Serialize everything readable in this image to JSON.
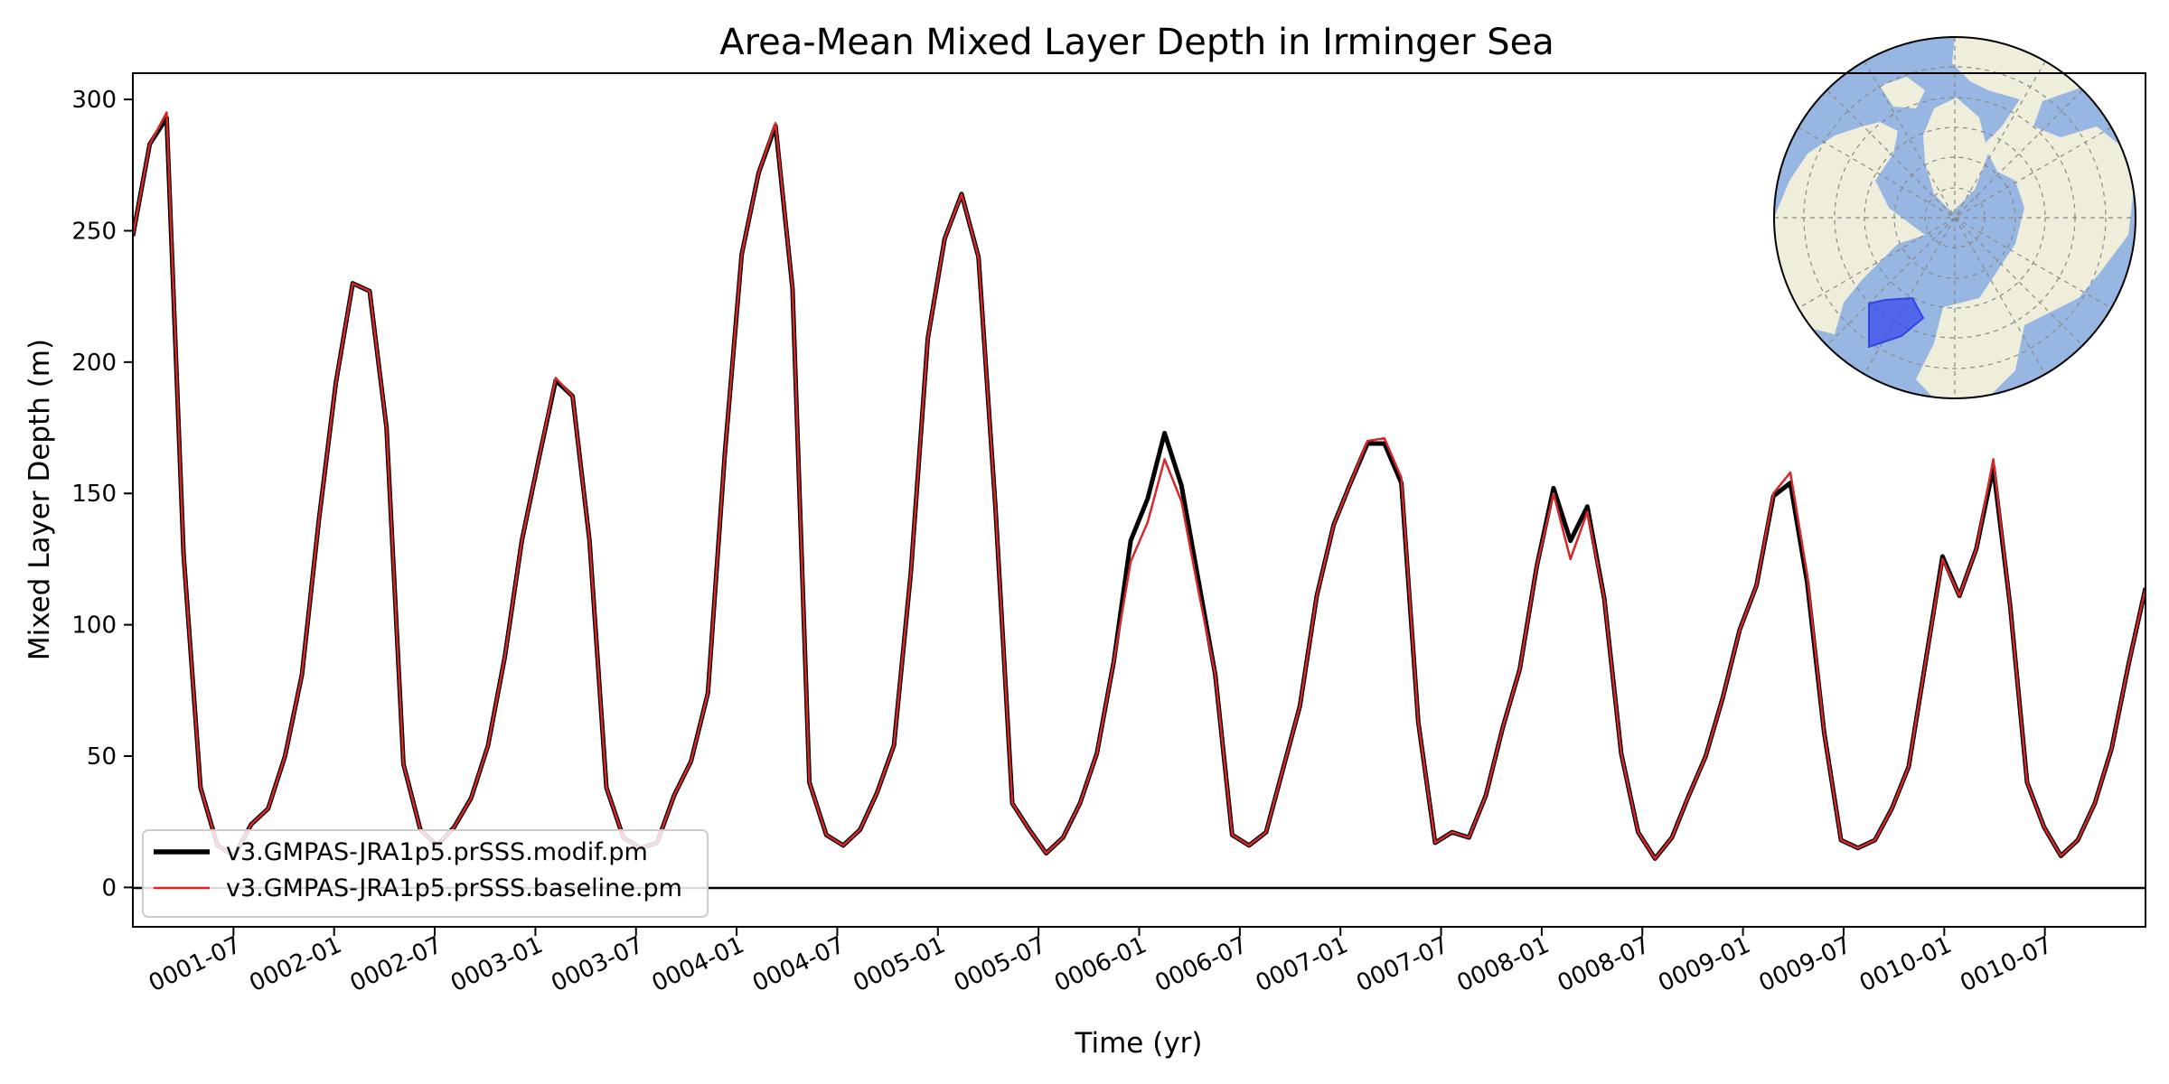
{
  "chart_data": {
    "type": "line",
    "title": "Area-Mean Mixed Layer Depth in Irminger Sea",
    "xlabel": "Time (yr)",
    "ylabel": "Mixed Layer Depth (m)",
    "xlim": [
      0.0,
      10.0
    ],
    "ylim": [
      -15,
      310
    ],
    "yticks": [
      0,
      50,
      100,
      150,
      200,
      250,
      300
    ],
    "xtick_labels": [
      "0001-07",
      "0002-01",
      "0002-07",
      "0003-01",
      "0003-07",
      "0004-01",
      "0004-07",
      "0005-01",
      "0005-07",
      "0006-01",
      "0006-07",
      "0007-01",
      "0007-07",
      "0008-01",
      "0008-07",
      "0009-01",
      "0009-07",
      "0010-01",
      "0010-07"
    ],
    "zero_line": true,
    "grid": false,
    "legend_position": "lower-left",
    "inset": "north-polar-map-irminger-sea-region",
    "series": [
      {
        "name": "v3.GMPAS-JRA1p5.prSSS.modif.pm",
        "color": "#000000",
        "values": [
          248,
          283,
          293,
          127,
          38,
          16,
          12,
          24,
          30,
          50,
          81,
          140,
          192,
          230,
          227,
          175,
          47,
          22,
          16,
          23,
          34,
          54,
          88,
          132,
          163,
          193,
          187,
          132,
          38,
          19,
          15,
          17,
          35,
          48,
          74,
          165,
          241,
          272,
          290,
          228,
          40,
          20,
          16,
          22,
          36,
          54,
          120,
          209,
          247,
          264,
          240,
          145,
          32,
          22,
          13,
          19,
          32,
          51,
          86,
          132,
          148,
          173,
          153,
          117,
          81,
          20,
          16,
          21,
          45,
          69,
          111,
          138,
          154,
          169,
          169,
          154,
          63,
          17,
          21,
          19,
          35,
          61,
          83,
          122,
          152,
          132,
          145,
          110,
          51,
          21,
          11,
          19,
          35,
          50,
          72,
          98,
          115,
          149,
          154,
          116,
          59,
          18,
          15,
          18,
          30,
          46,
          86,
          126,
          111,
          129,
          160,
          107,
          40,
          23,
          12,
          18,
          32,
          53,
          85,
          114
        ]
      },
      {
        "name": "v3.GMPAS-JRA1p5.prSSS.baseline.pm",
        "color": "#d62728",
        "values": [
          248,
          283,
          295,
          127,
          38,
          16,
          12,
          24,
          30,
          50,
          81,
          140,
          192,
          230,
          227,
          175,
          47,
          22,
          16,
          23,
          34,
          54,
          88,
          132,
          163,
          194,
          187,
          132,
          38,
          19,
          15,
          17,
          35,
          48,
          74,
          165,
          241,
          272,
          291,
          228,
          40,
          20,
          16,
          22,
          36,
          54,
          120,
          209,
          247,
          264,
          240,
          145,
          32,
          22,
          13,
          19,
          32,
          51,
          86,
          124,
          139,
          163,
          147,
          113,
          81,
          20,
          16,
          21,
          45,
          69,
          111,
          138,
          154,
          170,
          171,
          156,
          63,
          17,
          21,
          19,
          35,
          61,
          83,
          122,
          150,
          125,
          143,
          110,
          51,
          21,
          11,
          19,
          35,
          50,
          72,
          98,
          115,
          150,
          158,
          119,
          59,
          18,
          15,
          18,
          30,
          46,
          86,
          125,
          111,
          129,
          163,
          107,
          40,
          23,
          12,
          18,
          32,
          53,
          85,
          114
        ]
      }
    ]
  }
}
